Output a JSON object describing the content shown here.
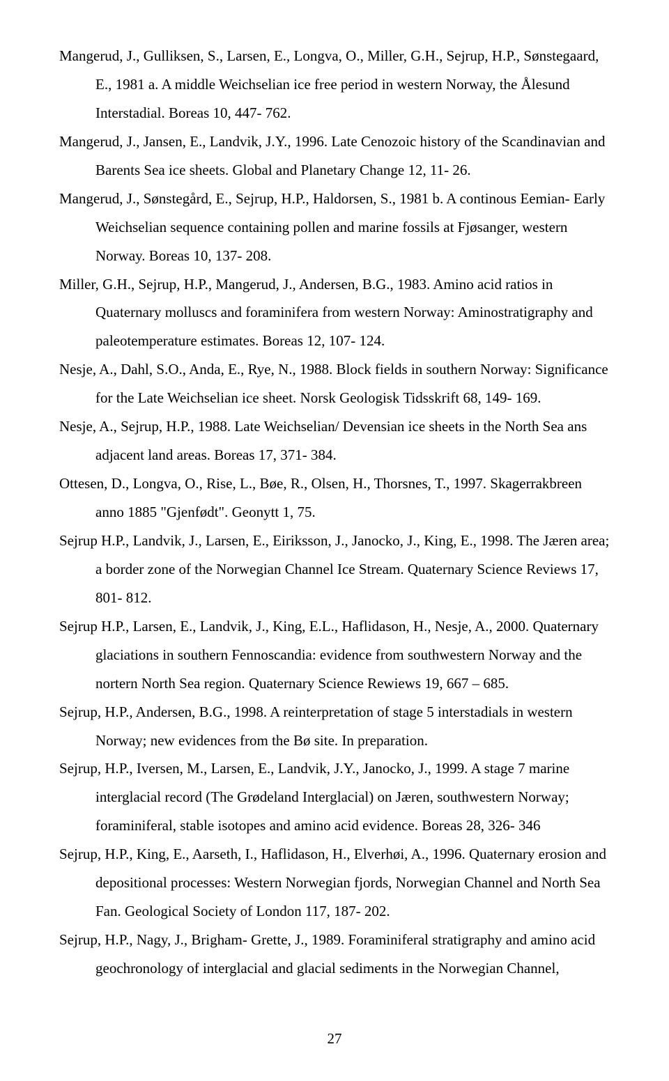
{
  "references": [
    "Mangerud, J., Gulliksen, S., Larsen, E., Longva, O., Miller, G.H., Sejrup, H.P., Sønstegaard, E., 1981 a. A middle Weichselian ice free period in western Norway, the Ålesund Interstadial. Boreas 10, 447- 762.",
    "Mangerud, J., Jansen, E., Landvik, J.Y., 1996. Late Cenozoic history of the Scandinavian and Barents Sea ice sheets. Global and Planetary Change 12, 11- 26.",
    "Mangerud, J., Sønstegård, E., Sejrup, H.P., Haldorsen, S., 1981 b. A continous Eemian- Early Weichselian sequence containing pollen and marine fossils at Fjøsanger, western Norway. Boreas 10, 137- 208.",
    "Miller, G.H., Sejrup, H.P., Mangerud, J., Andersen, B.G., 1983. Amino  acid ratios in Quaternary molluscs and foraminifera from western Norway: Aminostratigraphy and paleotemperature estimates. Boreas 12, 107- 124.",
    "Nesje, A., Dahl, S.O., Anda, E., Rye, N., 1988. Block fields in southern Norway: Significance for the Late Weichselian ice sheet. Norsk Geologisk Tidsskrift 68, 149- 169.",
    "Nesje, A., Sejrup, H.P., 1988. Late Weichselian/ Devensian ice sheets in the North Sea ans adjacent land areas. Boreas 17, 371- 384.",
    "Ottesen, D., Longva, O., Rise, L., Bøe, R., Olsen, H., Thorsnes, T., 1997. Skagerrakbreen anno 1885 \"Gjenfødt\". Geonytt 1, 75.",
    "Sejrup H.P., Landvik, J., Larsen, E., Eiriksson, J., Janocko, J., King, E., 1998. The Jæren area; a border zone of the Norwegian Channel Ice Stream. Quaternary Science Reviews 17, 801- 812.",
    "Sejrup H.P., Larsen, E., Landvik, J., King, E.L., Haflidason, H., Nesje, A., 2000. Quaternary glaciations in southern Fennoscandia: evidence from southwestern Norway and the nortern North Sea region. Quaternary Science Rewiews 19, 667 – 685.",
    "Sejrup, H.P., Andersen, B.G., 1998. A reinterpretation of stage 5 interstadials in western Norway; new evidences from the Bø site. In preparation.",
    "Sejrup, H.P., Iversen, M., Larsen, E., Landvik, J.Y., Janocko, J., 1999. A stage 7 marine interglacial record (The Grødeland Interglacial) on Jæren, southwestern Norway; foraminiferal, stable isotopes and amino acid evidence. Boreas 28, 326- 346",
    "Sejrup, H.P., King, E., Aarseth, I., Haflidason, H., Elverhøi, A., 1996. Quaternary erosion and depositional processes: Western Norwegian fjords, Norwegian Channel and North Sea Fan. Geological Society of London 117, 187- 202.",
    "Sejrup, H.P., Nagy, J., Brigham- Grette, J., 1989. Foraminiferal stratigraphy and amino acid geochronology of interglacial and glacial sediments in the Norwegian Channel,"
  ],
  "pageNumber": "27"
}
